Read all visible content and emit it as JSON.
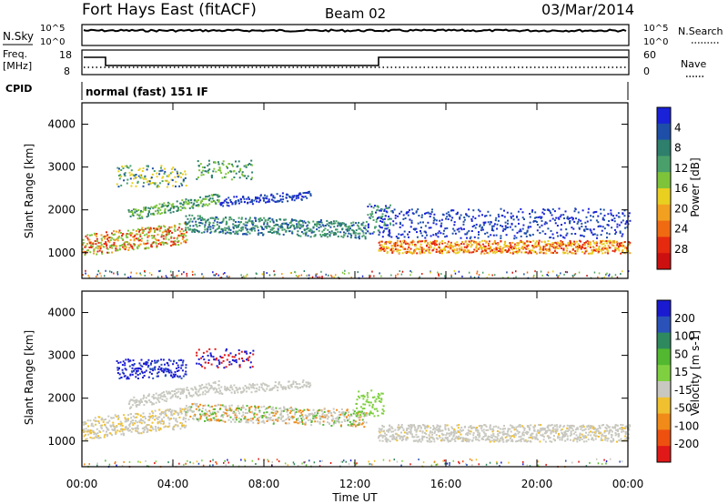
{
  "header": {
    "title": "Fort Hays East (fitACF)",
    "beam": "Beam 02",
    "date": "03/Mar/2014"
  },
  "top_panels": {
    "nsky_label": "N.Sky",
    "nsearch_label": "N.Search",
    "noise_ticks": [
      "10^5",
      "10^0"
    ],
    "freq_label_1": "Freq.",
    "freq_label_2": "[MHz]",
    "freq_ticks": [
      "18",
      "8"
    ],
    "nave_ticks": [
      "60",
      "0"
    ],
    "nave_label": "Nave",
    "cpid_label": "CPID",
    "cpid_text": "normal (fast) 151 IF"
  },
  "chart_data": [
    {
      "type": "heatmap",
      "name": "power",
      "ylabel": "Slant Range [km]",
      "xlabel": "Time UT",
      "xlim": [
        0,
        24
      ],
      "ylim": [
        400,
        4500
      ],
      "x_ticks": [
        "00:00",
        "04:00",
        "08:00",
        "12:00",
        "16:00",
        "20:00",
        "00:00"
      ],
      "y_ticks": [
        1000,
        2000,
        3000,
        4000
      ],
      "colorbar": {
        "label": "Power [dB]",
        "ticks": [
          "4",
          "8",
          "12",
          "16",
          "20",
          "24",
          "28"
        ],
        "colors": [
          "#1a22d8",
          "#1e4fa8",
          "#2e7f6c",
          "#4aa06a",
          "#7ec43a",
          "#e8cf20",
          "#f2a020",
          "#f06a12",
          "#e52a10",
          "#cc1010"
        ]
      }
    },
    {
      "type": "heatmap",
      "name": "velocity",
      "ylabel": "Slant Range [km]",
      "xlabel": "Time UT",
      "xlim": [
        0,
        24
      ],
      "ylim": [
        400,
        4500
      ],
      "x_ticks": [
        "00:00",
        "04:00",
        "08:00",
        "12:00",
        "16:00",
        "20:00",
        "00:00"
      ],
      "y_ticks": [
        1000,
        2000,
        3000,
        4000
      ],
      "colorbar": {
        "label": "Velocity [m s-1]",
        "ticks": [
          "200",
          "100",
          "50",
          "15",
          "-15",
          "-50",
          "-100",
          "-200"
        ],
        "colors": [
          "#1a1ad0",
          "#2a52b8",
          "#2e8a5e",
          "#52b830",
          "#7fd040",
          "#c8c8c0",
          "#f0c030",
          "#f08a18",
          "#ee5010",
          "#e01818"
        ]
      }
    }
  ]
}
